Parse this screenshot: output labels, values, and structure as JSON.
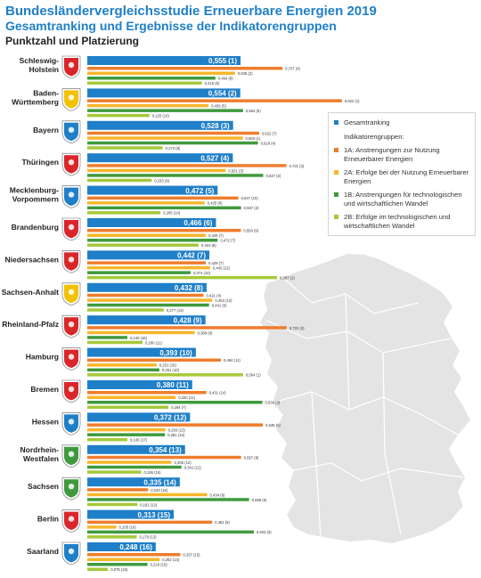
{
  "header": {
    "title": "Bundesländervergleichsstudie Erneuerbare Energien 2019",
    "subtitle": "Gesamtranking und Ergebnisse der Indikatorengruppen",
    "subtitle2": "Punktzahl und Platzierung"
  },
  "colors": {
    "gesamt": "#1f7fc8",
    "1A": "#ef7d2d",
    "2A": "#f7b62b",
    "1B": "#3f9a3d",
    "2B": "#a5c93b",
    "map": "#e4e4e4"
  },
  "legend": {
    "gesamt": "Gesamtranking",
    "group_header": "Indikatorengruppen:",
    "items": [
      {
        "key": "1A",
        "label": "1A: Anstrengungen zur Nutzung Erneuerbarer Energien"
      },
      {
        "key": "2A",
        "label": "2A: Erfolge bei der Nutzung Erneuerbarer Energien"
      },
      {
        "key": "1B",
        "label": "1B: Anstrengungen für technologischen und wirtschaftlichen Wandel"
      },
      {
        "key": "2B",
        "label": "2B: Erfolge im technologischen und wirtschaftlichen Wandel"
      }
    ]
  },
  "chart_data": {
    "type": "bar",
    "orientation": "horizontal",
    "series_keys": [
      "gesamt",
      "1A",
      "2A",
      "1B",
      "2B"
    ],
    "series_names": [
      "Gesamtranking",
      "1A",
      "2A",
      "1B",
      "2B"
    ],
    "states": [
      {
        "name": [
          "Schleswig-",
          "Holstein"
        ],
        "gesamt": [
          0.555,
          1
        ],
        "1A": [
          0.707,
          4
        ],
        "2A": [
          0.535,
          2
        ],
        "1B": [
          0.464,
          8
        ],
        "2B": [
          0.415,
          5
        ]
      },
      {
        "name": [
          "Baden-",
          "Württemberg"
        ],
        "gesamt": [
          0.554,
          2
        ],
        "1A": [
          0.922,
          1
        ],
        "2A": [
          0.439,
          5
        ],
        "1B": [
          0.564,
          6
        ],
        "2B": [
          0.225,
          10
        ]
      },
      {
        "name": [
          "Bayern"
        ],
        "gesamt": [
          0.528,
          3
        ],
        "1A": [
          0.622,
          7
        ],
        "2A": [
          0.563,
          1
        ],
        "1B": [
          0.618,
          4
        ],
        "2B": [
          0.273,
          8
        ]
      },
      {
        "name": [
          "Thüringen"
        ],
        "gesamt": [
          0.527,
          4
        ],
        "1A": [
          0.721,
          3
        ],
        "2A": [
          0.501,
          3
        ],
        "1B": [
          0.637,
          2
        ],
        "2B": [
          0.233,
          9
        ]
      },
      {
        "name": [
          "Mecklenburg-",
          "Vorpommern"
        ],
        "gesamt": [
          0.472,
          5
        ],
        "1A": [
          0.547,
          10
        ],
        "2A": [
          0.425,
          8
        ],
        "1B": [
          0.557,
          2
        ],
        "2B": [
          0.265,
          14
        ]
      },
      {
        "name": [
          "Brandenburg"
        ],
        "gesamt": [
          0.466,
          6
        ],
        "1A": [
          0.556,
          9
        ],
        "2A": [
          0.429,
          7
        ],
        "1B": [
          0.472,
          7
        ],
        "2B": [
          0.403,
          6
        ]
      },
      {
        "name": [
          "Niedersachsen"
        ],
        "gesamt": [
          0.442,
          7
        ],
        "1A": [
          0.429,
          7
        ],
        "2A": [
          0.445,
          12
        ],
        "1B": [
          0.374,
          10
        ],
        "2B": [
          0.687,
          1
        ]
      },
      {
        "name": [
          "Sachsen-Anhalt"
        ],
        "gesamt": [
          0.432,
          8
        ],
        "1A": [
          0.421,
          4
        ],
        "2A": [
          0.453,
          13
        ],
        "1B": [
          0.441,
          6
        ],
        "2B": [
          0.277,
          13
        ]
      },
      {
        "name": [
          "Rheinland-Pfalz"
        ],
        "gesamt": [
          0.428,
          9
        ],
        "1A": [
          0.722,
          2
        ],
        "2A": [
          0.389,
          9
        ],
        "1B": [
          0.145,
          16
        ],
        "2B": [
          0.2,
          11
        ]
      },
      {
        "name": [
          "Hamburg"
        ],
        "gesamt": [
          0.393,
          10
        ],
        "1A": [
          0.484,
          11
        ],
        "2A": [
          0.251,
          15
        ],
        "1B": [
          0.261,
          10
        ],
        "2B": [
          0.564,
          1
        ]
      },
      {
        "name": [
          "Bremen"
        ],
        "gesamt": [
          0.38,
          11
        ],
        "1A": [
          0.431,
          14
        ],
        "2A": [
          0.32,
          11
        ],
        "1B": [
          0.634,
          3
        ],
        "2B": [
          0.294,
          7
        ]
      },
      {
        "name": [
          "Hessen"
        ],
        "gesamt": [
          0.372,
          12
        ],
        "1A": [
          0.636,
          6
        ],
        "2A": [
          0.283,
          13
        ],
        "1B": [
          0.281,
          15
        ],
        "2B": [
          0.145,
          17
        ]
      },
      {
        "name": [
          "Nordrhein-",
          "Westfalen"
        ],
        "gesamt": [
          0.354,
          13
        ],
        "1A": [
          0.557,
          8
        ],
        "2A": [
          0.305,
          12
        ],
        "1B": [
          0.341,
          12
        ],
        "2B": [
          0.195,
          15
        ]
      },
      {
        "name": [
          "Sachsen"
        ],
        "gesamt": [
          0.335,
          14
        ],
        "1A": [
          0.22,
          16
        ],
        "2A": [
          0.434,
          6
        ],
        "1B": [
          0.586,
          5
        ],
        "2B": [
          0.181,
          12
        ]
      },
      {
        "name": [
          "Berlin"
        ],
        "gesamt": [
          0.313,
          15
        ],
        "1A": [
          0.452,
          5
        ],
        "2A": [
          0.105,
          16
        ],
        "1B": [
          0.603,
          3
        ],
        "2B": [
          0.179,
          13
        ]
      },
      {
        "name": [
          "Saarland"
        ],
        "gesamt": [
          0.248,
          16
        ],
        "1A": [
          0.337,
          15
        ],
        "2A": [
          0.262,
          14
        ],
        "1B": [
          0.218,
          15
        ],
        "2B": [
          0.075,
          16
        ]
      }
    ]
  }
}
